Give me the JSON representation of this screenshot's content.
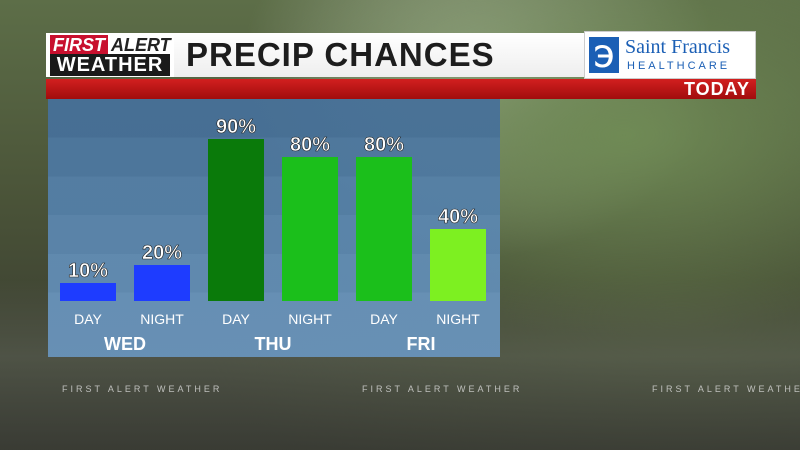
{
  "header": {
    "logo_line1_first": "FIRST",
    "logo_line1_alert": "ALERT",
    "logo_line2": "WEATHER",
    "title": "PRECIP CHANCES",
    "tag": "TODAY"
  },
  "sponsor": {
    "name": "Saint Francis",
    "subtitle": "HEALTHCARE"
  },
  "watermark": "FIRST ALERT WEATHER",
  "colors": {
    "title_red": "#c8102e",
    "bar_blue": "#1e3cff",
    "bar_dark_green": "#0a7a0a",
    "bar_green": "#1bbf1b",
    "bar_lime": "#7df021"
  },
  "chart_data": {
    "type": "bar",
    "title": "PRECIP CHANCES",
    "categories": [
      "DAY",
      "NIGHT",
      "DAY",
      "NIGHT",
      "DAY",
      "NIGHT"
    ],
    "groups": [
      "WED",
      "THU",
      "FRI"
    ],
    "values": [
      10,
      20,
      90,
      80,
      80,
      40
    ],
    "value_labels": [
      "10%",
      "20%",
      "90%",
      "80%",
      "80%",
      "40%"
    ],
    "bar_colors": [
      "#1e3cff",
      "#1e3cff",
      "#0a7a0a",
      "#1bbf1b",
      "#1bbf1b",
      "#7df021"
    ],
    "ylim": [
      0,
      100
    ],
    "unit": "%",
    "grid": false,
    "legend": "none"
  }
}
